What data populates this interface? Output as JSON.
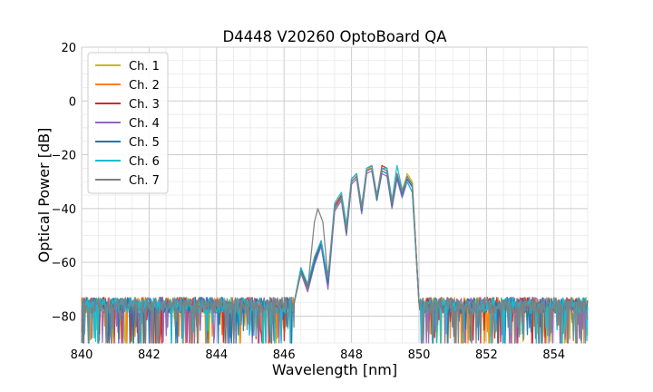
{
  "chart_data": {
    "type": "line",
    "title": "D4448 V20260 OptoBoard QA",
    "xlabel": "Wavelength [nm]",
    "ylabel": "Optical Power [dB]",
    "xlim": [
      840,
      855
    ],
    "ylim": [
      -90,
      20
    ],
    "xticks": [
      840,
      842,
      844,
      846,
      848,
      850,
      852,
      854
    ],
    "yticks": [
      -80,
      -60,
      -40,
      -20,
      0,
      20
    ],
    "grid": true,
    "legend_position": "upper-left",
    "noise_floor_db": -75,
    "series": [
      {
        "name": "Ch. 1",
        "color": "#bcbd22",
        "x": [
          846.3,
          846.5,
          846.7,
          846.9,
          847.1,
          847.3,
          847.5,
          847.7,
          847.85,
          848.0,
          848.15,
          848.3,
          848.45,
          848.6,
          848.75,
          848.9,
          849.05,
          849.2,
          849.35,
          849.5,
          849.65,
          849.8,
          850.0
        ],
        "y": [
          -75,
          -64,
          -70,
          -60,
          -53,
          -68,
          -40,
          -36,
          -48,
          -30,
          -28,
          -40,
          -26,
          -25,
          -36,
          -25,
          -26,
          -38,
          -28,
          -34,
          -27,
          -30,
          -75
        ]
      },
      {
        "name": "Ch. 2",
        "color": "#ff7f0e",
        "x": [
          846.3,
          846.5,
          846.7,
          846.9,
          847.1,
          847.3,
          847.5,
          847.7,
          847.85,
          848.0,
          848.15,
          848.3,
          848.45,
          848.6,
          848.75,
          848.9,
          849.05,
          849.2,
          849.35,
          849.5,
          849.65,
          849.8,
          850.0
        ],
        "y": [
          -75,
          -63,
          -69,
          -59,
          -52,
          -67,
          -40,
          -35,
          -47,
          -30,
          -28,
          -39,
          -26,
          -24,
          -35,
          -25,
          -26,
          -37,
          -28,
          -33,
          -28,
          -31,
          -75
        ]
      },
      {
        "name": "Ch. 3",
        "color": "#d62728",
        "x": [
          846.3,
          846.5,
          846.7,
          846.9,
          847.1,
          847.3,
          847.5,
          847.7,
          847.85,
          848.0,
          848.15,
          848.3,
          848.45,
          848.6,
          848.75,
          848.9,
          849.05,
          849.2,
          849.35,
          849.5,
          849.65,
          849.8,
          850.0
        ],
        "y": [
          -75,
          -62,
          -69,
          -59,
          -52,
          -67,
          -39,
          -35,
          -48,
          -29,
          -27,
          -40,
          -25,
          -24,
          -36,
          -24,
          -25,
          -38,
          -27,
          -34,
          -29,
          -32,
          -75
        ]
      },
      {
        "name": "Ch. 4",
        "color": "#9467bd",
        "x": [
          846.3,
          846.5,
          846.7,
          846.9,
          847.1,
          847.3,
          847.5,
          847.7,
          847.85,
          848.0,
          848.15,
          848.3,
          848.45,
          848.6,
          848.75,
          848.9,
          849.05,
          849.2,
          849.35,
          849.5,
          849.65,
          849.8,
          850.0
        ],
        "y": [
          -75,
          -64,
          -71,
          -61,
          -54,
          -70,
          -41,
          -37,
          -50,
          -31,
          -29,
          -42,
          -27,
          -26,
          -37,
          -27,
          -28,
          -40,
          -29,
          -36,
          -30,
          -34,
          -75
        ]
      },
      {
        "name": "Ch. 5",
        "color": "#1f77b4",
        "x": [
          846.3,
          846.5,
          846.7,
          846.9,
          847.1,
          847.3,
          847.5,
          847.7,
          847.85,
          848.0,
          848.15,
          848.3,
          848.45,
          848.6,
          848.75,
          848.9,
          849.05,
          849.2,
          849.35,
          849.5,
          849.65,
          849.8,
          850.0
        ],
        "y": [
          -75,
          -63,
          -70,
          -60,
          -53,
          -68,
          -40,
          -36,
          -49,
          -30,
          -28,
          -41,
          -26,
          -25,
          -37,
          -26,
          -27,
          -39,
          -28,
          -35,
          -29,
          -32,
          -75
        ]
      },
      {
        "name": "Ch. 6",
        "color": "#17becf",
        "x": [
          846.3,
          846.5,
          846.7,
          846.9,
          847.1,
          847.3,
          847.5,
          847.7,
          847.85,
          848.0,
          848.15,
          848.3,
          848.45,
          848.6,
          848.75,
          848.9,
          849.05,
          849.2,
          849.35,
          849.5,
          849.65,
          849.8,
          850.0
        ],
        "y": [
          -75,
          -62,
          -68,
          -58,
          -52,
          -66,
          -38,
          -34,
          -46,
          -29,
          -27,
          -39,
          -25,
          -24,
          -35,
          -25,
          -25,
          -37,
          -24,
          -33,
          -30,
          -34,
          -75
        ]
      },
      {
        "name": "Ch. 7",
        "color": "#7f7f7f",
        "x": [
          846.3,
          846.5,
          846.7,
          846.9,
          847.0,
          847.15,
          847.3,
          847.5,
          847.7,
          847.85,
          848.0,
          848.15,
          848.3,
          848.45,
          848.6,
          848.75,
          848.9,
          849.05,
          849.2,
          849.35,
          849.5,
          849.65,
          849.8,
          850.0
        ],
        "y": [
          -75,
          -64,
          -70,
          -45,
          -40,
          -45,
          -66,
          -40,
          -36,
          -48,
          -30,
          -28,
          -40,
          -26,
          -25,
          -36,
          -25,
          -26,
          -38,
          -27,
          -34,
          -28,
          -31,
          -75
        ]
      }
    ]
  }
}
